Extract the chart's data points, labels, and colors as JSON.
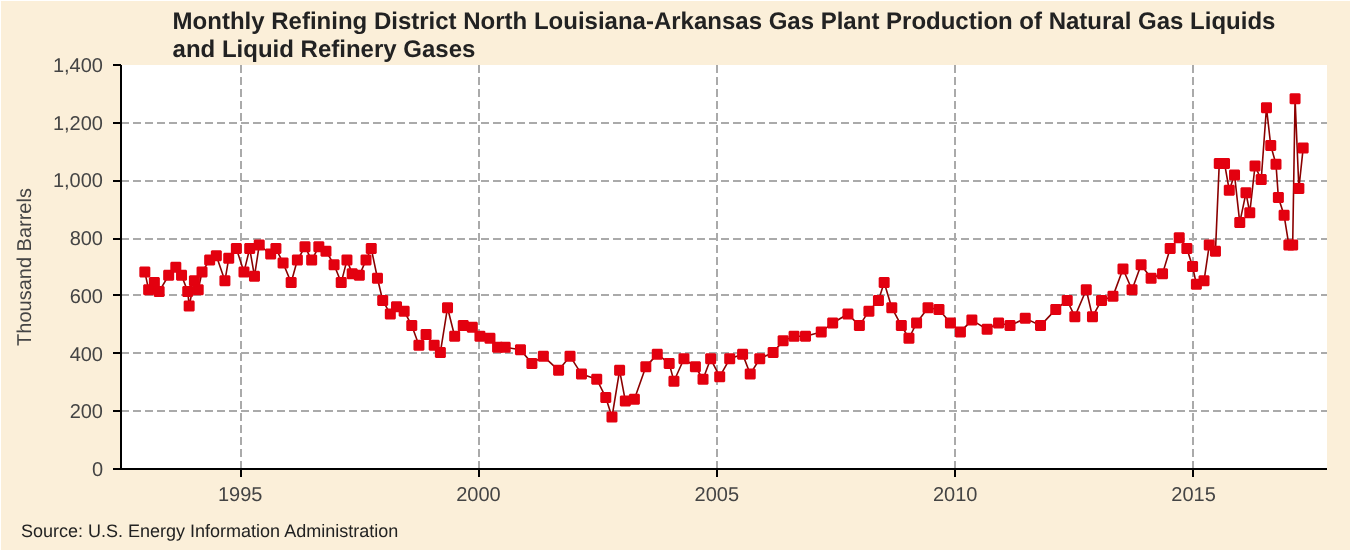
{
  "chart_data": {
    "type": "line",
    "title": "Monthly Refining District North Louisiana-Arkansas Gas Plant Production of Natural Gas Liquids\nand Liquid Refinery Gases",
    "ylabel": "Thousand Barrels",
    "annotations": [
      "Source: U.S. Energy Information Administration"
    ],
    "xlim": [
      1992.5,
      2017.8
    ],
    "xticks": [
      1995,
      2000,
      2005,
      2010,
      2015
    ],
    "ylim": [
      0,
      1400
    ],
    "yticks": [
      0,
      200,
      400,
      600,
      800,
      {
        "value": 1000,
        "label": "1,000"
      },
      {
        "value": 1200,
        "label": "1,200"
      },
      {
        "value": 1400,
        "label": "1,400"
      }
    ],
    "grid": true,
    "marker": "square",
    "line_style": "solid",
    "series": [
      {
        "color": "#e3000f",
        "x": [
          1993.0,
          1993.08,
          1993.2,
          1993.3,
          1993.5,
          1993.65,
          1993.77,
          1993.9,
          1993.93,
          1994.04,
          1994.12,
          1994.2,
          1994.36,
          1994.5,
          1994.68,
          1994.76,
          1994.92,
          1995.08,
          1995.2,
          1995.3,
          1995.4,
          1995.64,
          1995.75,
          1995.9,
          1996.07,
          1996.2,
          1996.36,
          1996.5,
          1996.65,
          1996.8,
          1996.97,
          1997.12,
          1997.24,
          1997.35,
          1997.5,
          1997.64,
          1997.75,
          1997.88,
          1997.99,
          1998.15,
          1998.28,
          1998.44,
          1998.6,
          1998.75,
          1998.9,
          1999.07,
          1999.2,
          1999.35,
          1999.5,
          1999.68,
          1999.87,
          2000.03,
          2000.24,
          2000.4,
          2000.56,
          2000.88,
          2001.12,
          2001.36,
          2001.68,
          2001.92,
          2002.16,
          2002.48,
          2002.67,
          2002.8,
          2002.96,
          2003.08,
          2003.27,
          2003.51,
          2003.75,
          2004.0,
          2004.1,
          2004.31,
          2004.55,
          2004.71,
          2004.87,
          2005.06,
          2005.27,
          2005.54,
          2005.7,
          2005.9,
          2006.18,
          2006.39,
          2006.62,
          2006.86,
          2007.19,
          2007.43,
          2007.75,
          2007.99,
          2008.19,
          2008.39,
          2008.51,
          2008.67,
          2008.87,
          2009.03,
          2009.19,
          2009.43,
          2009.66,
          2009.9,
          2010.11,
          2010.35,
          2010.67,
          2010.91,
          2011.15,
          2011.47,
          2011.79,
          2012.11,
          2012.35,
          2012.51,
          2012.75,
          2012.88,
          2013.07,
          2013.31,
          2013.52,
          2013.71,
          2013.9,
          2014.11,
          2014.35,
          2014.51,
          2014.7,
          2014.86,
          2014.98,
          2015.06,
          2015.22,
          2015.33,
          2015.46,
          2015.54,
          2015.65,
          2015.75,
          2015.86,
          2015.97,
          2016.1,
          2016.18,
          2016.29,
          2016.42,
          2016.53,
          2016.62,
          2016.73,
          2016.78,
          2016.9,
          2017.0,
          2017.08,
          2017.13,
          2017.21,
          2017.3
        ],
        "values": [
          683,
          621,
          646,
          615,
          671,
          699,
          671,
          615,
          565,
          652,
          621,
          683,
          724,
          739,
          652,
          730,
          764,
          683,
          764,
          668,
          776,
          745,
          764,
          714,
          646,
          724,
          770,
          724,
          770,
          755,
          708,
          646,
          724,
          677,
          671,
          724,
          764,
          661,
          584,
          537,
          562,
          547,
          497,
          429,
          466,
          429,
          404,
          559,
          460,
          497,
          491,
          460,
          453,
          422,
          422,
          413,
          366,
          391,
          342,
          391,
          329,
          311,
          248,
          180,
          342,
          236,
          242,
          354,
          398,
          366,
          304,
          382,
          354,
          311,
          382,
          320,
          382,
          398,
          329,
          382,
          404,
          444,
          460,
          460,
          475,
          506,
          537,
          497,
          547,
          584,
          646,
          559,
          497,
          453,
          506,
          559,
          553,
          506,
          475,
          516,
          484,
          506,
          497,
          522,
          497,
          553,
          584,
          528,
          621,
          528,
          584,
          599,
          693,
          621,
          708,
          661,
          677,
          764,
          801,
          764,
          702,
          640,
          652,
          776,
          755,
          1059,
          1059,
          966,
          1019,
          854,
          957,
          888,
          1050,
          1003,
          1252,
          1121,
          1056,
          941,
          879,
          776,
          776,
          1283,
          972,
          1112
        ]
      }
    ]
  }
}
